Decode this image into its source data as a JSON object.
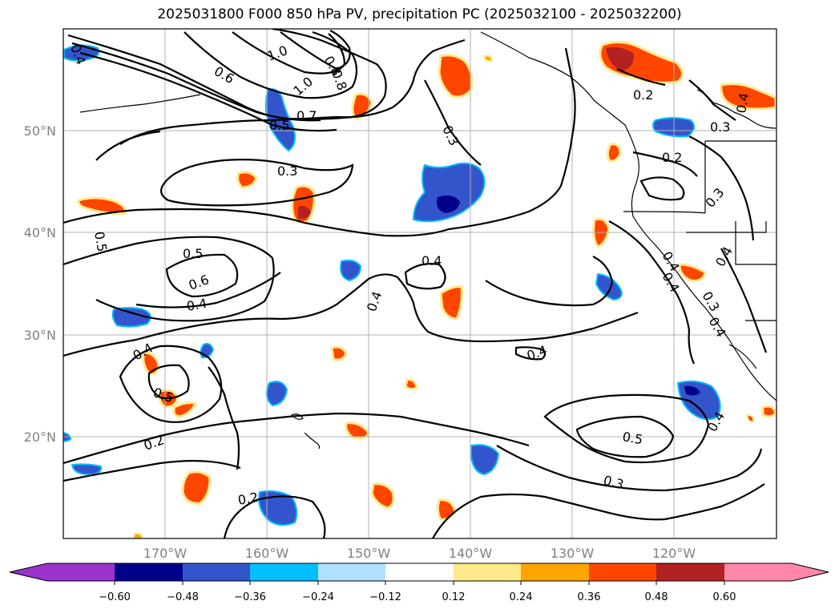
{
  "title": "2025031800 F000 850 hPa PV, precipitation PC (2025032100 - 2025032200)",
  "lat_labels": [
    "50°N",
    "40°N",
    "30°N",
    "20°N"
  ],
  "lon_labels": [
    "170°W",
    "160°W",
    "150°W",
    "140°W",
    "130°W",
    "120°W"
  ],
  "contour_labels": [
    "0.4",
    "1.0",
    "0.8",
    "0.6",
    "1.0",
    "0.8",
    "0.5",
    "0.7",
    "0.3",
    "0.3",
    "0.2",
    "0.4",
    "0.3",
    "0.2",
    "0.3",
    "0.5",
    "0.5",
    "0.6",
    "0.4",
    "0.4",
    "0.4",
    "0.4",
    "0.4",
    "0.4",
    "0.5",
    "0.2",
    "0.2",
    "0.5",
    "0.3",
    "0.4",
    "0.4",
    "0.3",
    "0.4",
    "0.4"
  ],
  "colorbar": {
    "ticks": [
      "−0.60",
      "−0.48",
      "−0.36",
      "−0.24",
      "−0.12",
      "0.12",
      "0.24",
      "0.36",
      "0.48",
      "0.60"
    ],
    "colors": [
      "#9933cc",
      "#00008b",
      "#3355cc",
      "#00bfff",
      "#b0e0ff",
      "#ffffff",
      "#ffe98a",
      "#ffa500",
      "#ff4500",
      "#b22222",
      "#ff88aa"
    ]
  },
  "map_extent": {
    "lon_min": -180,
    "lon_max": -110,
    "lat_min": 10,
    "lat_max": 60
  }
}
